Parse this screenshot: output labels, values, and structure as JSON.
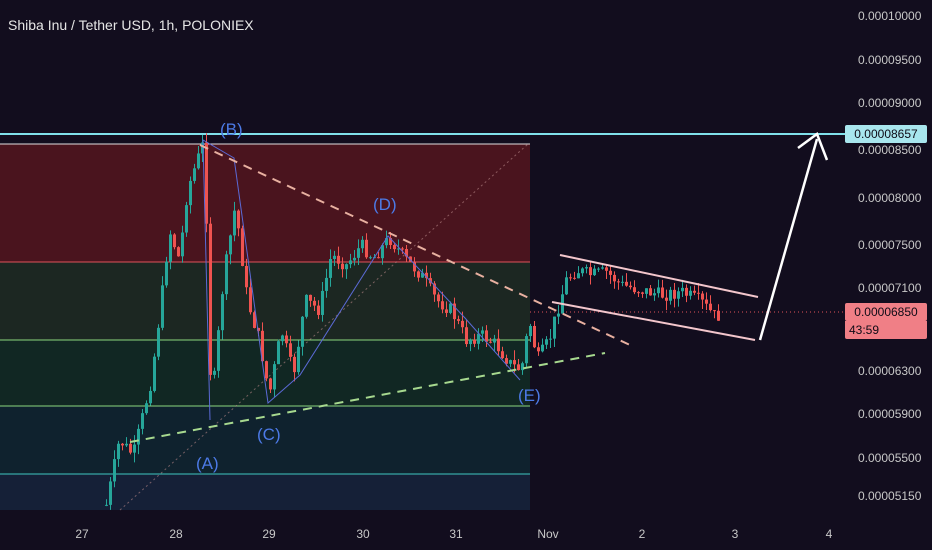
{
  "header": {
    "title": "Shiba Inu / Tether USD, 1h, POLONIEX"
  },
  "price_axis": {
    "ticks": [
      "0.00010000",
      "0.00009500",
      "0.00009000",
      "0.00008500",
      "0.00008000",
      "0.00007500",
      "0.00007100",
      "0.00006850",
      "0.00006300",
      "0.00005900",
      "0.00005500",
      "0.00005150"
    ],
    "level_label": "0.00008657",
    "last_price_label": "0.00006850",
    "countdown": "43:59"
  },
  "time_axis": {
    "labels": [
      "27",
      "28",
      "29",
      "30",
      "31",
      "Nov",
      "2",
      "3",
      "4"
    ]
  },
  "wave_labels": [
    "(A)",
    "(B)",
    "(C)",
    "(D)",
    "(E)"
  ],
  "colors": {
    "background": "#120d1e",
    "up": "#26a69a",
    "down": "#ef5350",
    "level": "#7fe0ea",
    "channel": "#f3c6cc",
    "wave_label": "#4c7ae6"
  },
  "chart_data": {
    "type": "candlestick",
    "title": "Shiba Inu / Tether USD, 1h, POLONIEX",
    "x_labels": [
      "27",
      "28",
      "29",
      "30",
      "31",
      "Nov",
      "2",
      "3",
      "4"
    ],
    "y_range": [
      5.1e-05,
      0.000101
    ],
    "horizontal_level": 8.657e-05,
    "last_price": 6.85e-05,
    "waves": [
      {
        "label": "(A)",
        "price": 5.72e-05
      },
      {
        "label": "(B)",
        "price": 8.78e-05
      },
      {
        "label": "(C)",
        "price": 5.98e-05
      },
      {
        "label": "(D)",
        "price": 7.7e-05
      },
      {
        "label": "(E)",
        "price": 6.15e-05
      }
    ],
    "fib_levels": [
      8.55e-05,
      7.35e-05,
      6.61e-05,
      5.97e-05,
      5.34e-05
    ]
  }
}
